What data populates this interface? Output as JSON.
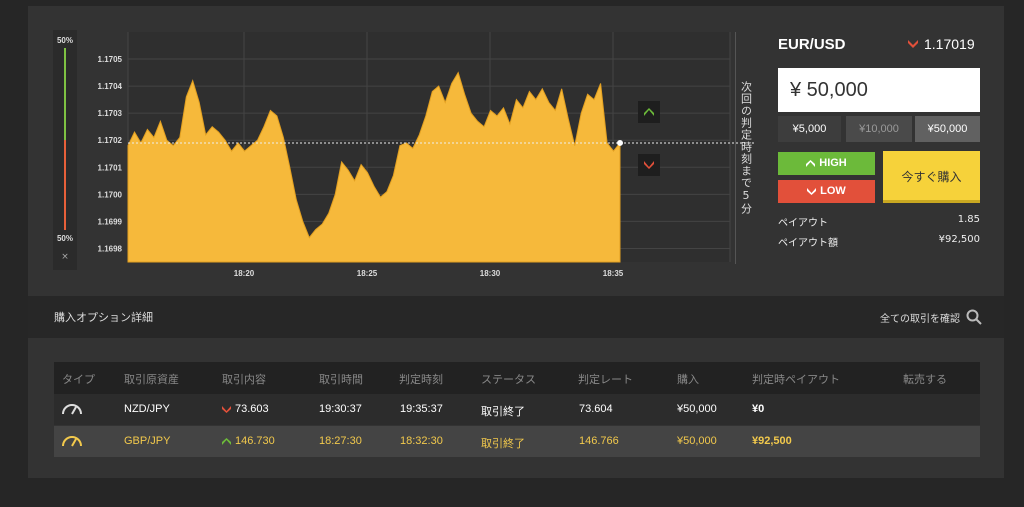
{
  "chart_data": {
    "type": "area",
    "y_ticks": [
      "1.1705",
      "1.1704",
      "1.1703",
      "1.1702",
      "1.1701",
      "1.1700",
      "1.1699",
      "1.1698"
    ],
    "x_ticks": [
      "18:20",
      "18:25",
      "18:30",
      "18:35"
    ],
    "ylim": [
      1.16975,
      1.1706
    ],
    "current_level": 1.17019,
    "grid": true,
    "series": [
      {
        "color": "#f6b93b",
        "values": [
          1.17018,
          1.17023,
          1.17019,
          1.17024,
          1.17021,
          1.17027,
          1.1702,
          1.17018,
          1.17021,
          1.17036,
          1.17042,
          1.17034,
          1.17022,
          1.17025,
          1.17023,
          1.1702,
          1.17016,
          1.17019,
          1.17016,
          1.17018,
          1.1702,
          1.17025,
          1.17031,
          1.17029,
          1.17021,
          1.1701,
          1.16998,
          1.1699,
          1.16984,
          1.16987,
          1.16989,
          1.16993,
          1.17,
          1.17012,
          1.17009,
          1.17005,
          1.17011,
          1.17008,
          1.17003,
          1.16999,
          1.17001,
          1.17007,
          1.17018,
          1.17019,
          1.17017,
          1.17022,
          1.17029,
          1.17038,
          1.1704,
          1.17034,
          1.17041,
          1.17045,
          1.17037,
          1.1703,
          1.17027,
          1.17025,
          1.17031,
          1.17029,
          1.17032,
          1.17026,
          1.17035,
          1.17032,
          1.17038,
          1.17035,
          1.17039,
          1.17034,
          1.17031,
          1.17039,
          1.17028,
          1.17018,
          1.1703,
          1.17037,
          1.17035,
          1.17041,
          1.17019,
          1.17016,
          1.17019
        ]
      }
    ]
  },
  "sentiment": {
    "top": "50%",
    "bottom": "50%",
    "close": "×"
  },
  "deadline_text": "次回の判定時刻まで5分",
  "panel": {
    "pair": "EUR/USD",
    "rate": "1.17019",
    "amount": "¥ 50,000",
    "presets": [
      "¥5,000",
      "¥10,000",
      "¥50,000"
    ],
    "high_label": "HIGH",
    "low_label": "LOW",
    "buy_label": "今すぐ購入",
    "payout_label": "ペイアウト",
    "payout_value": "1.85",
    "payout_amount_label": "ペイアウト額",
    "payout_amount_value": "¥92,500"
  },
  "colors": {
    "high": "#6cba3a",
    "low": "#e2503a",
    "buy": "#f6d23a",
    "area": "#f6b93b"
  },
  "details": {
    "title": "購入オプション詳細",
    "all_trades": "全ての取引を確認"
  },
  "table": {
    "headers": [
      "タイプ",
      "取引原資産",
      "取引内容",
      "取引時間",
      "判定時刻",
      "ステータス",
      "判定レート",
      "購入",
      "判定時ペイアウト",
      "転売する"
    ],
    "rows": [
      {
        "asset": "NZD/JPY",
        "direction": "low",
        "strike": "73.603",
        "time": "19:30:37",
        "expiry": "19:35:37",
        "status": "取引終了",
        "rate": "73.604",
        "buy": "¥50,000",
        "payout": "¥0"
      },
      {
        "asset": "GBP/JPY",
        "direction": "high",
        "strike": "146.730",
        "time": "18:27:30",
        "expiry": "18:32:30",
        "status": "取引終了",
        "rate": "146.766",
        "buy": "¥50,000",
        "payout": "¥92,500"
      }
    ]
  }
}
